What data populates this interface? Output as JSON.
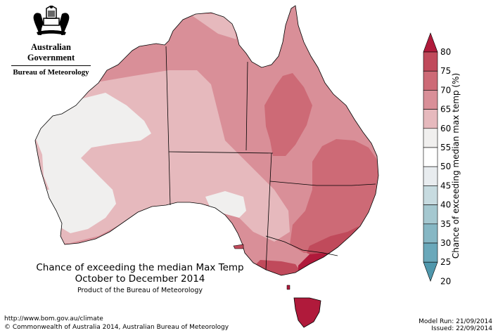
{
  "logo": {
    "government": "Australian Government",
    "bureau": "Bureau of Meteorology",
    "icon": "coat-of-arms-icon"
  },
  "map": {
    "title_line1": "Chance of exceeding the median Max Temp",
    "title_line2": "October to December 2014",
    "subtitle": "Product of the Bureau of Meteorology",
    "region": "Australia"
  },
  "legend": {
    "title": "Chance of exceeding median max temp (%)",
    "ticks": [
      "80",
      "75",
      "70",
      "65",
      "60",
      "55",
      "50",
      "45",
      "40",
      "35",
      "30",
      "25",
      "20"
    ],
    "colors": {
      "above_80": "#b01a3b",
      "75_80": "#c04a5b",
      "70_75": "#cd6a76",
      "65_70": "#d98f98",
      "60_65": "#e6b9bd",
      "55_60": "#f0efee",
      "50_55": "#ffffff",
      "45_50": "#e8ecef",
      "40_45": "#c7dbe0",
      "35_40": "#a5c8d0",
      "30_35": "#86b7c4",
      "25_30": "#6aa8ba",
      "below_20": "#4f97ac"
    }
  },
  "footer": {
    "url": "http://www.bom.gov.au/climate",
    "copyright": "© Commonwealth of Australia 2014, Australian Bureau of Meteorology",
    "model_run": "Model Run: 21/09/2014",
    "issued": "Issued: 22/09/2014"
  }
}
